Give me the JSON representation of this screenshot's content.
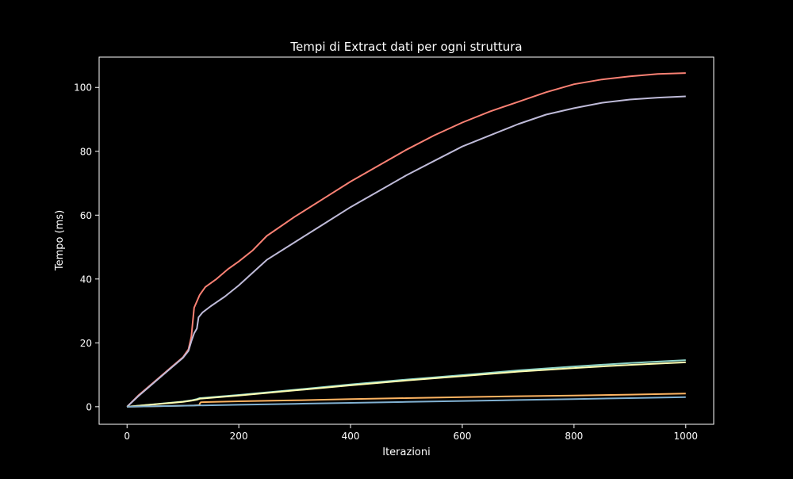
{
  "chart_data": {
    "type": "line",
    "title": "Tempi di Extract dati per ogni struttura",
    "xlabel": "Iterazioni",
    "ylabel": "Tempo (ms)",
    "xlim": [
      -50,
      1050
    ],
    "ylim": [
      -5.5,
      109.5
    ],
    "xticks": [
      0,
      200,
      400,
      600,
      800,
      1000
    ],
    "yticks": [
      0,
      20,
      40,
      60,
      80,
      100
    ],
    "grid": false,
    "legend": "none",
    "background": "#000000",
    "series": [
      {
        "color": "#fa8174",
        "x": [
          0,
          20,
          40,
          60,
          80,
          100,
          110,
          115,
          120,
          125,
          130,
          140,
          160,
          180,
          200,
          225,
          250,
          300,
          350,
          400,
          450,
          500,
          550,
          600,
          650,
          700,
          750,
          800,
          850,
          900,
          950,
          1000
        ],
        "y": [
          0,
          3.5,
          6.5,
          9.5,
          12.5,
          15.5,
          18.0,
          22.0,
          31.0,
          33.0,
          35.0,
          37.5,
          40.0,
          43.0,
          45.5,
          49.0,
          53.5,
          59.5,
          65.0,
          70.5,
          75.5,
          80.5,
          85.0,
          89.0,
          92.5,
          95.5,
          98.5,
          101.0,
          102.5,
          103.5,
          104.2,
          104.5
        ]
      },
      {
        "color": "#bfbbd9",
        "x": [
          0,
          20,
          40,
          60,
          80,
          100,
          110,
          115,
          120,
          125,
          128,
          135,
          150,
          175,
          200,
          225,
          250,
          300,
          350,
          400,
          450,
          500,
          550,
          600,
          650,
          700,
          750,
          800,
          850,
          900,
          950,
          1000
        ],
        "y": [
          0,
          3.3,
          6.3,
          9.3,
          12.3,
          15.3,
          17.5,
          20.5,
          23.0,
          24.5,
          28.0,
          29.5,
          31.5,
          34.5,
          38.0,
          42.0,
          46.0,
          51.5,
          57.0,
          62.5,
          67.5,
          72.5,
          77.0,
          81.5,
          85.0,
          88.5,
          91.5,
          93.5,
          95.2,
          96.2,
          96.8,
          97.2
        ]
      },
      {
        "color": "#8dd3c7",
        "x": [
          0,
          100,
          115,
          125,
          130,
          200,
          300,
          400,
          500,
          600,
          700,
          800,
          900,
          1000
        ],
        "y": [
          0,
          1.6,
          2.0,
          2.4,
          2.7,
          3.7,
          5.3,
          7.0,
          8.5,
          9.9,
          11.4,
          12.6,
          13.7,
          14.6
        ]
      },
      {
        "color": "#feffb3",
        "x": [
          0,
          100,
          115,
          125,
          130,
          200,
          300,
          400,
          500,
          600,
          700,
          800,
          900,
          1000
        ],
        "y": [
          0,
          1.5,
          1.9,
          2.2,
          2.5,
          3.5,
          5.1,
          6.7,
          8.2,
          9.6,
          11.0,
          12.1,
          13.1,
          13.9
        ]
      },
      {
        "color": "#fdb462",
        "x": [
          0,
          60,
          120,
          129,
          131,
          132,
          200,
          300,
          400,
          500,
          600,
          700,
          800,
          900,
          1000
        ],
        "y": [
          0,
          0.2,
          0.4,
          0.5,
          1.2,
          1.4,
          1.7,
          2.0,
          2.4,
          2.7,
          3.0,
          3.3,
          3.5,
          3.8,
          4.1
        ]
      },
      {
        "color": "#81b1d2",
        "x": [
          0,
          100,
          200,
          300,
          400,
          500,
          600,
          700,
          800,
          900,
          1000
        ],
        "y": [
          0,
          0.3,
          0.6,
          0.9,
          1.2,
          1.5,
          1.8,
          2.1,
          2.4,
          2.7,
          3.0
        ]
      }
    ]
  }
}
